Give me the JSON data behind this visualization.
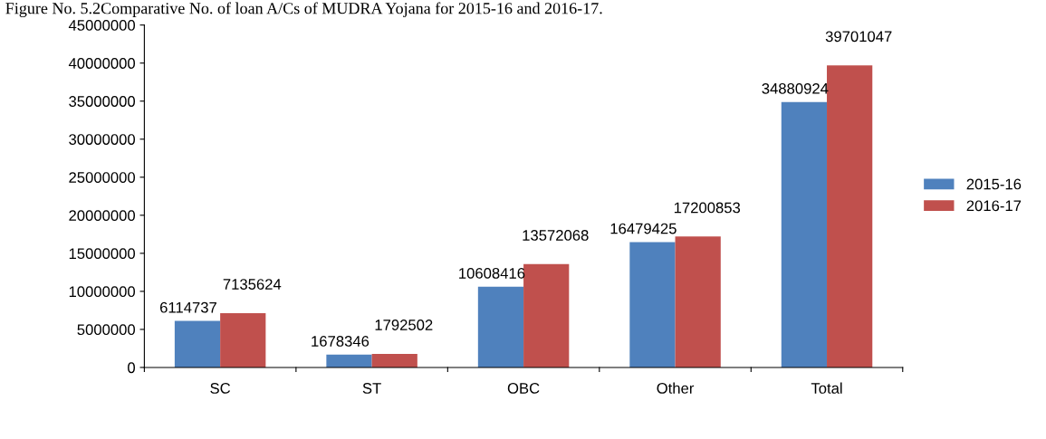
{
  "chart_data": {
    "type": "bar",
    "title": "Figure No. 5.2Comparative No. of loan A/Cs of MUDRA Yojana for 2015-16 and 2016-17.",
    "categories": [
      "SC",
      "ST",
      "OBC",
      "Other",
      "Total"
    ],
    "series": [
      {
        "name": "2015-16",
        "color": "#4f81bd",
        "values": [
          6114737,
          1678346,
          10608416,
          16479425,
          34880924
        ]
      },
      {
        "name": "2016-17",
        "color": "#c0504d",
        "values": [
          7135624,
          1792502,
          13572068,
          17200853,
          39701047
        ]
      }
    ],
    "ylim": [
      0,
      45000000
    ],
    "yticks": [
      0,
      5000000,
      10000000,
      15000000,
      20000000,
      25000000,
      30000000,
      35000000,
      40000000,
      45000000
    ],
    "grid": false,
    "legend": "right",
    "data_labels": true
  }
}
